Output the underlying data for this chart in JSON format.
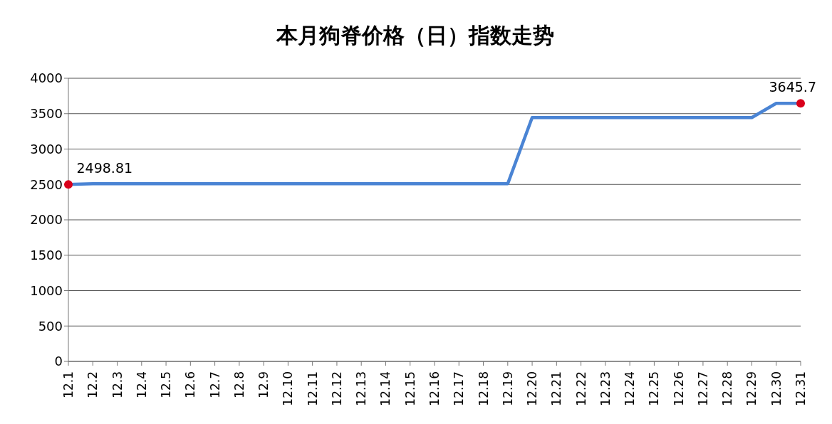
{
  "chart_data": {
    "type": "line",
    "title": "本月狗脊价格（日）指数走势",
    "categories": [
      "12.1",
      "12.2",
      "12.3",
      "12.4",
      "12.5",
      "12.6",
      "12.7",
      "12.8",
      "12.9",
      "12.10",
      "12.11",
      "12.12",
      "12.13",
      "12.14",
      "12.15",
      "12.16",
      "12.17",
      "12.18",
      "12.19",
      "12.20",
      "12.21",
      "12.22",
      "12.23",
      "12.24",
      "12.25",
      "12.26",
      "12.27",
      "12.28",
      "12.29",
      "12.30",
      "12.31"
    ],
    "series": [
      {
        "color": "#4a84d4",
        "marker": "none",
        "values": [
          2498.81,
          2510,
          2510,
          2510,
          2510,
          2510,
          2510,
          2510,
          2510,
          2510,
          2510,
          2510,
          2510,
          2510,
          2510,
          2510,
          2510,
          2510,
          2510,
          3445,
          3445,
          3445,
          3445,
          3445,
          3445,
          3445,
          3445,
          3445,
          3445,
          3645.7,
          3645.7
        ]
      },
      {
        "type": "scatter",
        "color": "#d9001b",
        "marker": "circle",
        "values": [
          2498.81,
          null,
          null,
          null,
          null,
          null,
          null,
          null,
          null,
          null,
          null,
          null,
          null,
          null,
          null,
          null,
          null,
          null,
          null,
          null,
          null,
          null,
          null,
          null,
          null,
          null,
          null,
          null,
          null,
          null,
          3645.7
        ],
        "value_labels": [
          "2498.81",
          null,
          null,
          null,
          null,
          null,
          null,
          null,
          null,
          null,
          null,
          null,
          null,
          null,
          null,
          null,
          null,
          null,
          null,
          null,
          null,
          null,
          null,
          null,
          null,
          null,
          null,
          null,
          null,
          null,
          "3645.7"
        ]
      }
    ],
    "ylim": [
      0,
      4000
    ],
    "yticks": [
      0,
      500,
      1000,
      1500,
      2000,
      2500,
      3000,
      3500,
      4000
    ],
    "grid": "y"
  }
}
